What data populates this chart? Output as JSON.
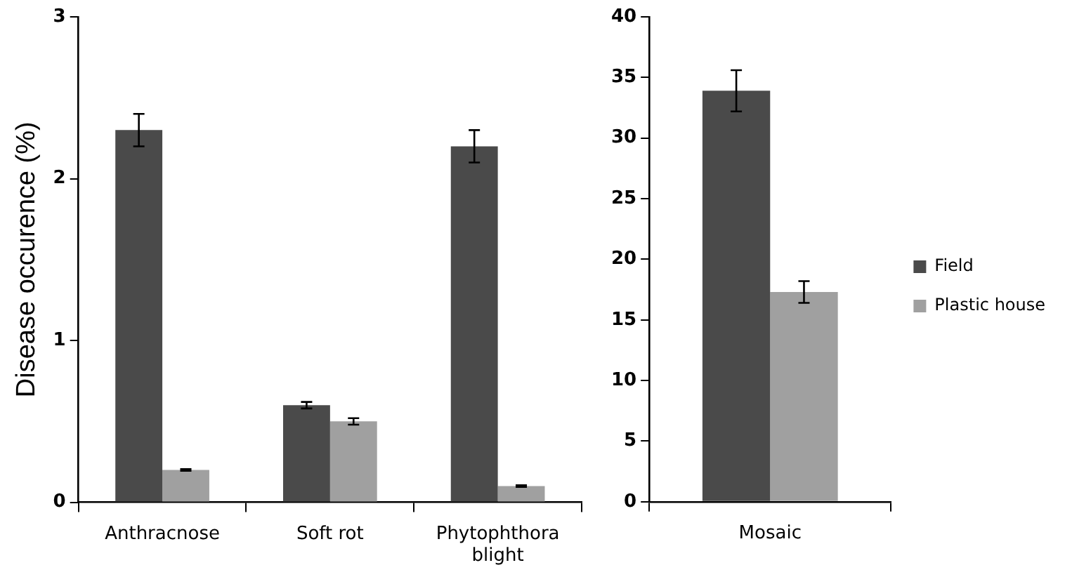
{
  "chart_data": [
    {
      "type": "bar",
      "ylabel": "Disease occurence (%)",
      "categories": [
        "Anthracnose",
        "Soft rot",
        "Phytophthora blight"
      ],
      "ylim": [
        0,
        3
      ],
      "yticks": [
        0,
        1,
        2,
        3
      ],
      "grid": false,
      "legend": false,
      "series": [
        {
          "color": "#4a4a4a",
          "values": [
            2.3,
            0.6,
            2.2
          ],
          "errors": [
            0.1,
            0.02,
            0.1
          ]
        },
        {
          "color": "#a0a0a0",
          "values": [
            0.2,
            0.5,
            0.1
          ],
          "errors": [
            0.005,
            0.02,
            0.005
          ]
        }
      ]
    },
    {
      "type": "bar",
      "categories": [
        "Mosaic"
      ],
      "ylim": [
        0,
        40
      ],
      "yticks": [
        0,
        5,
        10,
        15,
        20,
        25,
        30,
        35,
        40
      ],
      "grid": false,
      "legend": "right",
      "series": [
        {
          "name": "Field",
          "color": "#4a4a4a",
          "values": [
            33.9
          ],
          "errors": [
            1.7
          ]
        },
        {
          "name": "Plastic house",
          "color": "#a0a0a0",
          "values": [
            17.3
          ],
          "errors": [
            0.9
          ]
        }
      ]
    }
  ]
}
